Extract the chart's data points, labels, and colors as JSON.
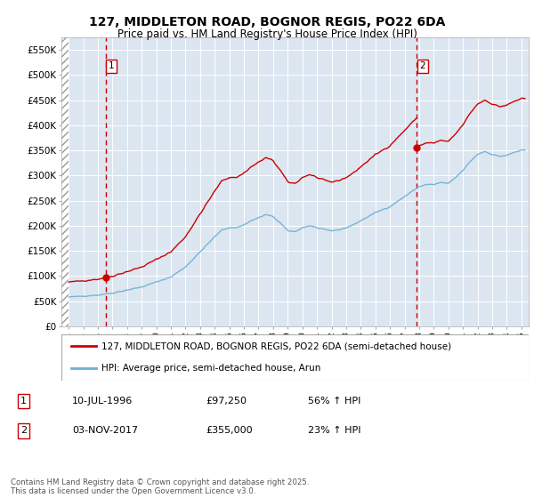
{
  "title_line1": "127, MIDDLETON ROAD, BOGNOR REGIS, PO22 6DA",
  "title_line2": "Price paid vs. HM Land Registry's House Price Index (HPI)",
  "ylim": [
    0,
    575000
  ],
  "yticks": [
    0,
    50000,
    100000,
    150000,
    200000,
    250000,
    300000,
    350000,
    400000,
    450000,
    500000,
    550000
  ],
  "ytick_labels": [
    "£0",
    "£50K",
    "£100K",
    "£150K",
    "£200K",
    "£250K",
    "£300K",
    "£350K",
    "£400K",
    "£450K",
    "£500K",
    "£550K"
  ],
  "plot_bg_color": "#dce6f1",
  "red_line_color": "#cc0000",
  "blue_line_color": "#6baed6",
  "dashed_line_color": "#cc0000",
  "legend_label_red": "127, MIDDLETON ROAD, BOGNOR REGIS, PO22 6DA (semi-detached house)",
  "legend_label_blue": "HPI: Average price, semi-detached house, Arun",
  "annotation1_label": "1",
  "annotation1_date": "10-JUL-1996",
  "annotation1_price": "£97,250",
  "annotation1_hpi": "56% ↑ HPI",
  "annotation1_year": 1996.53,
  "annotation1_value": 97250,
  "annotation2_label": "2",
  "annotation2_date": "03-NOV-2017",
  "annotation2_price": "£355,000",
  "annotation2_hpi": "23% ↑ HPI",
  "annotation2_year": 2017.84,
  "annotation2_value": 355000,
  "footnote": "Contains HM Land Registry data © Crown copyright and database right 2025.\nThis data is licensed under the Open Government Licence v3.0.",
  "xlim_start": 1993.5,
  "xlim_end": 2025.5
}
